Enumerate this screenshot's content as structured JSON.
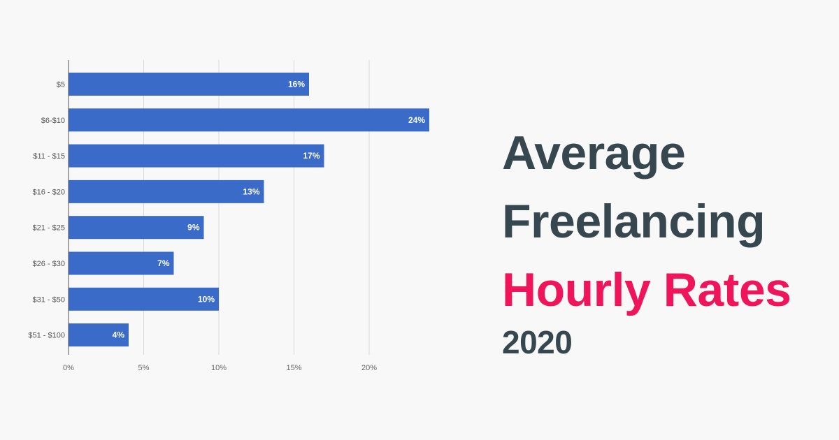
{
  "title": {
    "line1": "Average",
    "line2": "Freelancing",
    "line3": "Hourly Rates",
    "year": "2020"
  },
  "colors": {
    "bar": "#3a6bc9",
    "title_dark": "#37474f",
    "title_accent": "#f0145a",
    "grid": "#d9d9d9",
    "axis": "#555555"
  },
  "chart_data": {
    "type": "bar",
    "orientation": "horizontal",
    "categories": [
      "$5",
      "$6-$10",
      "$11 - $15",
      "$16 - $20",
      "$21 - $25",
      "$26 - $30",
      "$31 - $50",
      "$51 - $100"
    ],
    "values": [
      16,
      24,
      17,
      13,
      9,
      7,
      10,
      4
    ],
    "data_labels": [
      "16%",
      "24%",
      "17%",
      "13%",
      "9%",
      "7%",
      "10%",
      "4%"
    ],
    "x_ticks": [
      0,
      5,
      10,
      15,
      20
    ],
    "x_tick_labels": [
      "0%",
      "5%",
      "10%",
      "15%",
      "20%"
    ],
    "xlim": [
      0,
      25
    ],
    "grid": true,
    "legend": "none"
  }
}
